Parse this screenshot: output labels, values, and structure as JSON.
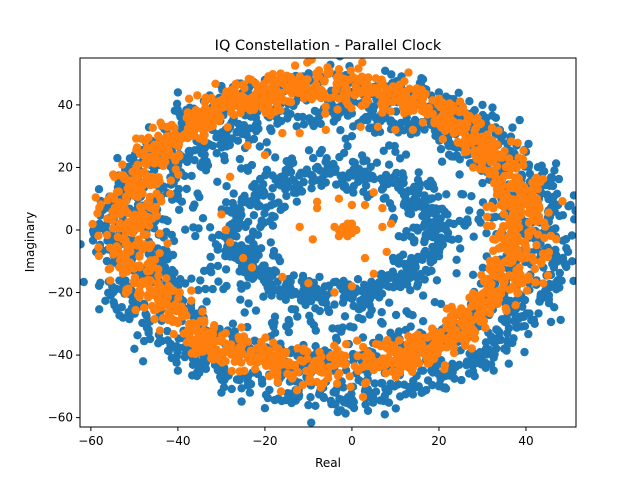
{
  "chart_data": {
    "type": "scatter",
    "title": "IQ Constellation - Parallel Clock",
    "xlabel": "Real",
    "ylabel": "Imaginary",
    "xlim": [
      -62.5,
      51.5
    ],
    "ylim": [
      -63,
      55
    ],
    "xticks": [
      -60,
      -40,
      -20,
      0,
      20,
      40
    ],
    "yticks": [
      -60,
      -40,
      -20,
      0,
      20,
      40
    ],
    "xtick_labels": [
      "−60",
      "−40",
      "−20",
      "0",
      "20",
      "40"
    ],
    "ytick_labels": [
      "−60",
      "−40",
      "−20",
      "0",
      "20",
      "40"
    ],
    "grid": false,
    "legend": "none",
    "series": [
      {
        "color": "#1f77b4",
        "structure": "rings around origin plus scattered interior points",
        "rings": [
          {
            "cx": -4,
            "cy": -3,
            "rx": 51,
            "ry": 50,
            "spread": 3,
            "count": 900
          },
          {
            "cx": -4,
            "cy": -2,
            "rx": 42,
            "ry": 40,
            "spread": 2.5,
            "count": 600
          },
          {
            "cx": -4,
            "cy": -1,
            "rx": 23,
            "ry": 20,
            "spread": 2.5,
            "count": 420
          }
        ],
        "sample_points": [
          [
            -58,
            2
          ],
          [
            -55,
            -7
          ],
          [
            -52,
            -20
          ],
          [
            -50,
            -38
          ],
          [
            -48,
            -42
          ],
          [
            -40,
            44
          ],
          [
            -30,
            46
          ],
          [
            -20,
            48
          ],
          [
            -10,
            49
          ],
          [
            0,
            48
          ],
          [
            10,
            47
          ],
          [
            20,
            44
          ],
          [
            30,
            40
          ],
          [
            40,
            25
          ],
          [
            43,
            10
          ],
          [
            46,
            0
          ],
          [
            44,
            -12
          ],
          [
            42,
            -30
          ],
          [
            35,
            -38
          ],
          [
            20,
            -50
          ],
          [
            0,
            -55
          ],
          [
            -10,
            -56
          ],
          [
            -20,
            -57
          ],
          [
            -30,
            -52
          ],
          [
            -40,
            -45
          ],
          [
            0,
            30
          ],
          [
            10,
            25
          ],
          [
            18,
            10
          ],
          [
            20,
            -5
          ],
          [
            15,
            -18
          ],
          [
            0,
            -22
          ],
          [
            -15,
            -20
          ],
          [
            -25,
            -8
          ],
          [
            -25,
            10
          ],
          [
            -15,
            22
          ],
          [
            -5,
            18
          ],
          [
            -40,
            10
          ],
          [
            -42,
            -15
          ],
          [
            -35,
            28
          ],
          [
            30,
            15
          ]
        ],
        "scatter_points": 500
      },
      {
        "color": "#ff7f0e",
        "structure": "thick elliptical band, sparse inner points, cluster at origin",
        "band": {
          "cx": -6,
          "cy": 1,
          "rx": 45,
          "ry": 45,
          "spread": 3.5,
          "count": 1600
        },
        "inner_points": [
          [
            -8,
            43
          ],
          [
            -3,
            42
          ],
          [
            2,
            33
          ],
          [
            6,
            33
          ],
          [
            10,
            32
          ],
          [
            14,
            32
          ],
          [
            -6,
            32
          ],
          [
            -12,
            31
          ],
          [
            -16,
            31
          ],
          [
            -24,
            27
          ],
          [
            -20,
            24
          ],
          [
            -28,
            17
          ],
          [
            -30,
            5
          ],
          [
            -29,
            0
          ],
          [
            -28,
            -4
          ],
          [
            -25,
            -9
          ],
          [
            -23,
            -12
          ],
          [
            -16,
            -15
          ],
          [
            -10,
            -17
          ],
          [
            -4,
            -20
          ],
          [
            0,
            -18
          ],
          [
            5,
            -14
          ],
          [
            8,
            -7
          ],
          [
            9,
            2
          ],
          [
            7,
            7
          ],
          [
            0,
            8
          ],
          [
            -8,
            7
          ],
          [
            -12,
            1
          ],
          [
            -8,
            9
          ],
          [
            -3,
            10
          ],
          [
            3,
            8
          ],
          [
            7,
            1
          ],
          [
            3,
            -9
          ],
          [
            -9,
            -3
          ],
          [
            5,
            12
          ]
        ],
        "center_cluster": [
          [
            -3,
            0
          ],
          [
            -2,
            1
          ],
          [
            -1,
            0
          ],
          [
            0,
            1
          ],
          [
            0,
            -1
          ],
          [
            -2,
            -1
          ],
          [
            -1,
            2
          ],
          [
            1,
            0
          ],
          [
            -4,
            1
          ],
          [
            -3,
            -2
          ],
          [
            0,
            2
          ],
          [
            -1,
            -2
          ]
        ]
      }
    ]
  }
}
